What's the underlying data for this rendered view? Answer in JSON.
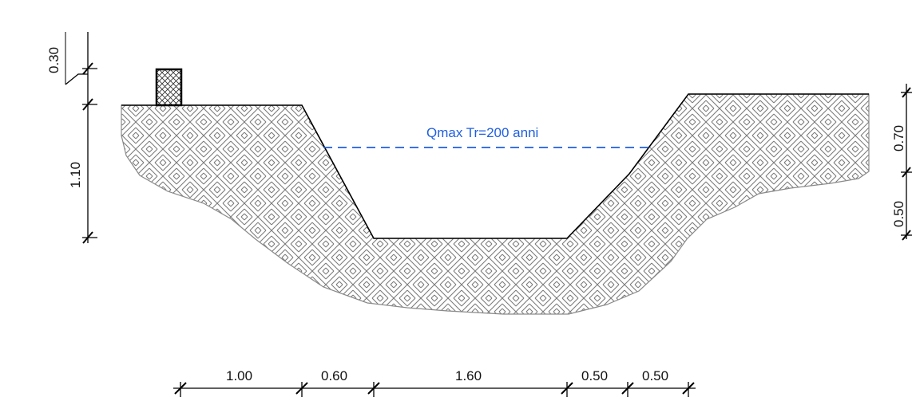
{
  "section": {
    "water_level_label": "Qmax Tr=200 anni",
    "colors": {
      "water_line": "#1f5fe0",
      "terrain_outline": "#888888",
      "hatch": "#7a7a7a",
      "channel_line": "#000000"
    }
  },
  "dimensions": {
    "bottom": [
      "1.00",
      "0.60",
      "1.60",
      "0.50",
      "0.50"
    ],
    "left": {
      "parapet": "0.30",
      "height": "1.10"
    },
    "right": {
      "upper": "0.70",
      "lower": "0.50"
    }
  }
}
